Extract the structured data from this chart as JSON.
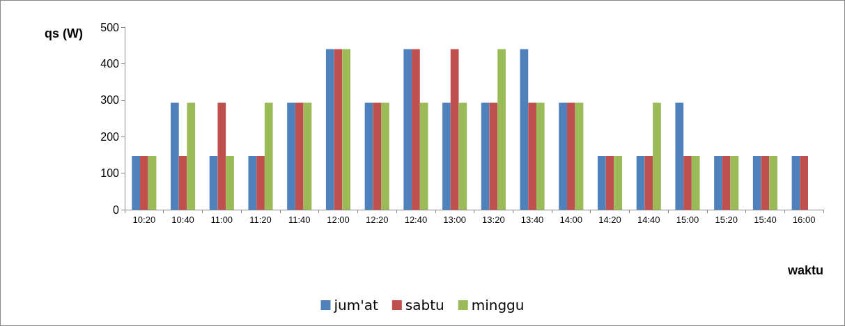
{
  "chart_data": {
    "type": "bar",
    "xlabel": "waktu",
    "ylabel": "qs (W)",
    "categories": [
      "10:20",
      "10:40",
      "11:00",
      "11:20",
      "11:40",
      "12:00",
      "12:20",
      "12:40",
      "13:00",
      "13:20",
      "13:40",
      "14:00",
      "14:20",
      "14:40",
      "15:00",
      "15:20",
      "15:40",
      "16:00"
    ],
    "series": [
      {
        "name": "jum'at",
        "color": "#4f81bd",
        "values": [
          147,
          293,
          147,
          147,
          293,
          440,
          293,
          440,
          293,
          293,
          440,
          293,
          147,
          147,
          293,
          147,
          147,
          147
        ]
      },
      {
        "name": "sabtu",
        "color": "#c0504d",
        "values": [
          147,
          147,
          293,
          147,
          293,
          440,
          293,
          440,
          440,
          293,
          293,
          293,
          147,
          147,
          147,
          147,
          147,
          147
        ]
      },
      {
        "name": "minggu",
        "color": "#9bbb59",
        "values": [
          147,
          293,
          147,
          293,
          293,
          440,
          293,
          293,
          293,
          440,
          293,
          293,
          147,
          293,
          147,
          147,
          147,
          null
        ]
      }
    ],
    "ylim": [
      0,
      500
    ],
    "yticks": [
      0,
      100,
      200,
      300,
      400,
      500
    ],
    "grid": false,
    "legend": "bottom"
  }
}
